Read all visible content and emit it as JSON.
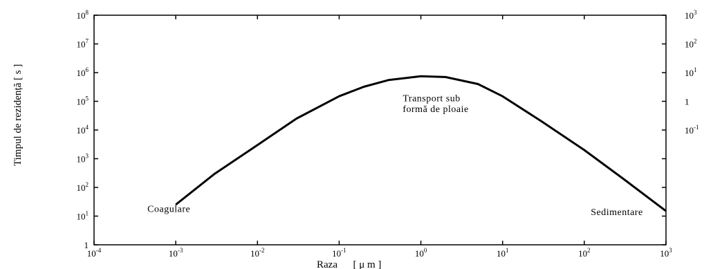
{
  "chart_data": {
    "type": "line",
    "title": "",
    "xlabel": "Raza      [ μ m ]",
    "ylabel": "Timpul de rezidență  [ s ]",
    "x_scale": "log",
    "y_scale": "log",
    "xlim": [
      0.0001,
      1000
    ],
    "ylim": [
      1,
      100000000
    ],
    "x_ticks": [
      {
        "base": "10",
        "exp": "-4"
      },
      {
        "base": "10",
        "exp": "-3"
      },
      {
        "base": "10",
        "exp": "-2"
      },
      {
        "base": "10",
        "exp": "-1"
      },
      {
        "base": "10",
        "exp": "0"
      },
      {
        "base": "10",
        "exp": "1"
      },
      {
        "base": "10",
        "exp": "2"
      },
      {
        "base": "10",
        "exp": "3"
      }
    ],
    "y_ticks": [
      {
        "base": "1",
        "exp": ""
      },
      {
        "base": "10",
        "exp": "1"
      },
      {
        "base": "10",
        "exp": "2"
      },
      {
        "base": "10",
        "exp": "3"
      },
      {
        "base": "10",
        "exp": "4"
      },
      {
        "base": "10",
        "exp": "5"
      },
      {
        "base": "10",
        "exp": "6"
      },
      {
        "base": "10",
        "exp": "7"
      },
      {
        "base": "10",
        "exp": "8"
      }
    ],
    "y2_ticks": [
      {
        "base": "10",
        "exp": "3",
        "level": 8
      },
      {
        "base": "10",
        "exp": "2",
        "level": 7
      },
      {
        "base": "10",
        "exp": "1",
        "level": 6
      },
      {
        "base": "1",
        "exp": "",
        "level": 5
      },
      {
        "base": "10",
        "exp": "-1",
        "level": 4
      }
    ],
    "series": [
      {
        "points": [
          {
            "x": 0.001,
            "y": 25
          },
          {
            "x": 0.003,
            "y": 300
          },
          {
            "x": 0.01,
            "y": 3000
          },
          {
            "x": 0.03,
            "y": 25000
          },
          {
            "x": 0.1,
            "y": 150000
          },
          {
            "x": 0.2,
            "y": 320000
          },
          {
            "x": 0.4,
            "y": 550000
          },
          {
            "x": 1,
            "y": 750000
          },
          {
            "x": 2,
            "y": 700000
          },
          {
            "x": 5,
            "y": 400000
          },
          {
            "x": 10,
            "y": 150000
          },
          {
            "x": 30,
            "y": 20000
          },
          {
            "x": 100,
            "y": 2000
          },
          {
            "x": 300,
            "y": 200
          },
          {
            "x": 1000,
            "y": 15
          }
        ]
      }
    ],
    "annotations": [
      {
        "text": "Coagulare",
        "x": 0.00045,
        "y": 14
      },
      {
        "text": "Transport sub",
        "x": 0.6,
        "y": 100000
      },
      {
        "text": "formă de ploaie",
        "x": 0.6,
        "y": 42000
      },
      {
        "text": "Sedimentare",
        "x": 120,
        "y": 11
      }
    ],
    "grid": false
  }
}
